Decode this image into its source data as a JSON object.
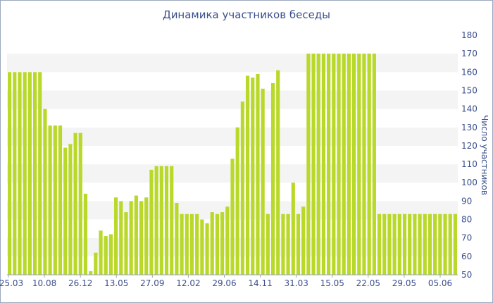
{
  "chart_data": {
    "type": "bar",
    "title": "Динамика участников беседы",
    "xlabel": "",
    "ylabel": "Число участников",
    "ylim": [
      50,
      180
    ],
    "yticks": [
      50,
      60,
      70,
      80,
      90,
      100,
      110,
      120,
      130,
      140,
      150,
      160,
      170,
      180
    ],
    "x_tick_labels": [
      "25.03",
      "10.08",
      "26.12",
      "13.05",
      "27.09",
      "12.02",
      "29.06",
      "14.11",
      "31.03",
      "15.05",
      "22.05",
      "29.05",
      "05.06"
    ],
    "grid": "horizontal bands",
    "bar_color": "#b9d92a",
    "values": [
      160,
      160,
      160,
      160,
      160,
      160,
      160,
      140,
      131,
      131,
      131,
      119,
      121,
      127,
      127,
      94,
      52,
      62,
      74,
      71,
      72,
      92,
      90,
      84,
      90,
      93,
      90,
      92,
      107,
      109,
      109,
      109,
      109,
      89,
      83,
      83,
      83,
      83,
      80,
      78,
      84,
      83,
      84,
      87,
      113,
      130,
      144,
      158,
      157,
      159,
      151,
      83,
      154,
      161,
      83,
      83,
      100,
      83,
      87,
      170,
      170,
      170,
      170,
      170,
      170,
      170,
      170,
      170,
      170,
      170,
      170,
      170,
      170,
      83,
      83,
      83,
      83,
      83,
      83,
      83,
      83,
      83,
      83,
      83,
      83,
      83,
      83,
      83,
      83
    ]
  }
}
